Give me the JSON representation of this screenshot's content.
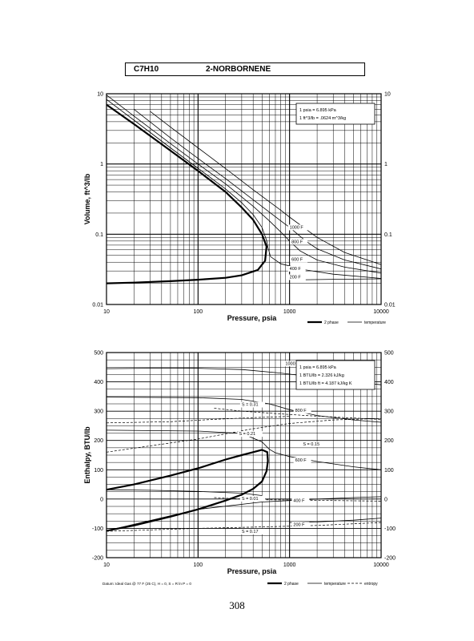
{
  "header": {
    "formula": "C7H10",
    "name": "2-NORBORNENE"
  },
  "page_number": "308",
  "chart_data": [
    {
      "type": "line",
      "x_scale": "log",
      "y_scale": "log",
      "xlim": [
        10,
        10000
      ],
      "ylim": [
        0.01,
        10
      ],
      "xlabel": "Pressure,  psia",
      "ylabel": "Volume, ft^3/lb",
      "x_ticks": [
        "10",
        "100",
        "1000",
        "10000"
      ],
      "y_ticks_left": [
        "10",
        "1",
        "0.1",
        "0.01"
      ],
      "y_ticks_right": [
        "10",
        "1",
        "0.1",
        "0.01"
      ],
      "grid": true,
      "conversions": [
        "1 psia  =  6.895 kPa",
        "1 ft^3/lb  =  .0624 m^3/kg"
      ],
      "legend": {
        "position": "bottom-right",
        "items": [
          "2 phase",
          "temperature"
        ]
      },
      "series": [
        {
          "style": "2 phase",
          "points": [
            [
              10,
              7.0
            ],
            [
              20,
              3.7
            ],
            [
              50,
              1.55
            ],
            [
              100,
              0.8
            ],
            [
              200,
              0.4
            ],
            [
              300,
              0.24
            ],
            [
              400,
              0.16
            ],
            [
              500,
              0.1
            ],
            [
              560,
              0.067
            ],
            [
              540,
              0.042
            ],
            [
              450,
              0.031
            ],
            [
              300,
              0.026
            ],
            [
              200,
              0.024
            ],
            [
              100,
              0.0225
            ],
            [
              50,
              0.0215
            ],
            [
              20,
              0.0205
            ],
            [
              10,
              0.02
            ]
          ]
        },
        {
          "style": "temperature",
          "points": [
            [
              10,
              8.3
            ],
            [
              20,
              4.2
            ],
            [
              50,
              1.7
            ],
            [
              100,
              0.87
            ],
            [
              200,
              0.44
            ],
            [
              300,
              0.28
            ],
            [
              400,
              0.19
            ],
            [
              500,
              0.125
            ],
            [
              560,
              0.082
            ],
            [
              580,
              0.065
            ],
            [
              620,
              0.048
            ],
            [
              800,
              0.038
            ],
            [
              1500,
              0.031
            ],
            [
              3000,
              0.027
            ],
            [
              10000,
              0.0235
            ]
          ]
        },
        {
          "style": "temperature",
          "points": [
            [
              10,
              9.6
            ],
            [
              20,
              4.8
            ],
            [
              50,
              1.95
            ],
            [
              100,
              1.0
            ],
            [
              200,
              0.52
            ],
            [
              400,
              0.25
            ],
            [
              600,
              0.155
            ],
            [
              800,
              0.108
            ],
            [
              1000,
              0.08
            ],
            [
              1300,
              0.058
            ],
            [
              2000,
              0.043
            ],
            [
              4000,
              0.034
            ],
            [
              10000,
              0.028
            ]
          ]
        },
        {
          "style": "temperature",
          "points": [
            [
              20,
              6.0
            ],
            [
              50,
              2.35
            ],
            [
              100,
              1.2
            ],
            [
              200,
              0.62
            ],
            [
              400,
              0.31
            ],
            [
              800,
              0.155
            ],
            [
              1000,
              0.125
            ],
            [
              1500,
              0.08
            ],
            [
              2000,
              0.062
            ],
            [
              4000,
              0.043
            ],
            [
              10000,
              0.032
            ]
          ]
        },
        {
          "style": "temperature",
          "points": [
            [
              30,
              5.6
            ],
            [
              50,
              3.35
            ],
            [
              100,
              1.7
            ],
            [
              200,
              0.86
            ],
            [
              400,
              0.43
            ],
            [
              800,
              0.22
            ],
            [
              1000,
              0.175
            ],
            [
              2000,
              0.09
            ],
            [
              4000,
              0.055
            ],
            [
              10000,
              0.037
            ]
          ]
        },
        {
          "style": "temperature",
          "points": [
            [
              1500,
              0.0225
            ],
            [
              3000,
              0.0228
            ],
            [
              10000,
              0.0232
            ]
          ]
        }
      ],
      "isotherm_labels": [
        {
          "text": "1000 F",
          "x": 1000,
          "y": 0.12
        },
        {
          "text": "800 F",
          "x": 1050,
          "y": 0.075
        },
        {
          "text": "600 F",
          "x": 1050,
          "y": 0.042
        },
        {
          "text": "400 F",
          "x": 1000,
          "y": 0.031
        },
        {
          "text": "200 F",
          "x": 1000,
          "y": 0.0235
        }
      ]
    },
    {
      "type": "line",
      "x_scale": "log",
      "y_scale": "linear",
      "xlim": [
        10,
        10000
      ],
      "ylim": [
        -200,
        500
      ],
      "xlabel": "Pressure,  psia",
      "ylabel": "Enthalpy, BTU/lb",
      "x_ticks": [
        "10",
        "100",
        "1000",
        "10000"
      ],
      "y_ticks_left": [
        "500",
        "400",
        "300",
        "200",
        "100",
        "0",
        "-100",
        "-200"
      ],
      "y_ticks_right": [
        "500",
        "400",
        "300",
        "200",
        "100",
        "0",
        "-100",
        "-200"
      ],
      "grid": true,
      "conversions": [
        "1 psia  =  6.895 kPa",
        "1 BTU/lb  =  2.326 kJ/kg",
        "1 BTU/lb ft  =  4.187 kJ/kg K"
      ],
      "footnote": "Datum: Ideal Gas @ 77 F (25 C),  H = 0,  S = R ln P = 0",
      "legend": {
        "position": "bottom-right",
        "items": [
          "2 phase",
          "temperature",
          "entropy"
        ]
      },
      "series": [
        {
          "style": "2 phase",
          "points": [
            [
              10,
              -108
            ],
            [
              20,
              -90
            ],
            [
              50,
              -60
            ],
            [
              100,
              -35
            ],
            [
              200,
              -5
            ],
            [
              300,
              15
            ],
            [
              400,
              35
            ],
            [
              500,
              60
            ],
            [
              560,
              95
            ],
            [
              580,
              130
            ],
            [
              570,
              160
            ],
            [
              500,
              168
            ],
            [
              400,
              160
            ],
            [
              300,
              150
            ],
            [
              200,
              135
            ],
            [
              100,
              105
            ],
            [
              50,
              80
            ],
            [
              20,
              50
            ],
            [
              10,
              32
            ]
          ]
        },
        {
          "style": "temperature",
          "points": [
            [
              10,
              445
            ],
            [
              50,
              447
            ],
            [
              100,
              446
            ],
            [
              300,
              442
            ],
            [
              800,
              430
            ],
            [
              2000,
              415
            ],
            [
              5000,
              400
            ],
            [
              10000,
              390
            ]
          ]
        },
        {
          "style": "temperature",
          "points": [
            [
              10,
              348
            ],
            [
              100,
              346
            ],
            [
              300,
              340
            ],
            [
              600,
              325
            ],
            [
              1000,
              305
            ],
            [
              2000,
              285
            ],
            [
              5000,
              270
            ],
            [
              10000,
              262
            ]
          ]
        },
        {
          "style": "temperature",
          "points": [
            [
              10,
              235
            ],
            [
              100,
              232
            ],
            [
              300,
              224
            ],
            [
              500,
              195
            ],
            [
              600,
              170
            ],
            [
              700,
              158
            ],
            [
              1000,
              145
            ],
            [
              2000,
              128
            ],
            [
              5000,
              110
            ],
            [
              10000,
              100
            ]
          ]
        },
        {
          "style": "temperature",
          "points": [
            [
              10,
              -108
            ],
            [
              100,
              -35
            ],
            [
              500,
              -10
            ],
            [
              1000,
              -5
            ],
            [
              2000,
              0
            ],
            [
              5000,
              5
            ],
            [
              10000,
              8
            ]
          ]
        },
        {
          "style": "temperature",
          "points": [
            [
              1000,
              -80
            ],
            [
              2000,
              -78
            ],
            [
              5000,
              -72
            ],
            [
              10000,
              -65
            ]
          ]
        },
        {
          "style": "temperature",
          "points": [
            [
              10,
              32
            ],
            [
              30,
              30
            ],
            [
              100,
              26
            ],
            [
              300,
              20
            ],
            [
              500,
              12
            ]
          ]
        },
        {
          "style": "entropy",
          "points": [
            [
              150,
              310
            ],
            [
              300,
              300
            ],
            [
              700,
              292
            ],
            [
              1500,
              285
            ],
            [
              4000,
              278
            ],
            [
              10000,
              272
            ]
          ]
        },
        {
          "style": "entropy",
          "points": [
            [
              10,
              260
            ],
            [
              50,
              264
            ],
            [
              150,
              272
            ],
            [
              400,
              278
            ],
            [
              1000,
              282
            ]
          ]
        },
        {
          "style": "entropy",
          "points": [
            [
              10,
              160
            ],
            [
              100,
              205
            ],
            [
              400,
              240
            ],
            [
              1000,
              258
            ],
            [
              3000,
              270
            ],
            [
              10000,
              275
            ]
          ]
        },
        {
          "style": "entropy",
          "points": [
            [
              150,
              5
            ],
            [
              400,
              -2
            ],
            [
              1000,
              -3
            ],
            [
              3000,
              -5
            ],
            [
              10000,
              -7
            ]
          ]
        },
        {
          "style": "entropy",
          "points": [
            [
              10,
              -110
            ],
            [
              100,
              -100
            ],
            [
              500,
              -95
            ],
            [
              2000,
              -90
            ],
            [
              10000,
              -80
            ]
          ]
        }
      ],
      "isotherm_labels": [
        {
          "text": "1000 F",
          "x": 900,
          "y": 458
        },
        {
          "text": "800 F",
          "x": 1150,
          "y": 298
        },
        {
          "text": "600 F",
          "x": 1150,
          "y": 128
        },
        {
          "text": "400 F",
          "x": 1100,
          "y": -10
        },
        {
          "text": "200 F",
          "x": 1100,
          "y": -92
        }
      ],
      "entropy_labels": [
        {
          "text": "S = 0.31",
          "x": 300,
          "y": 318
        },
        {
          "text": "S = 0.21",
          "x": 280,
          "y": 218
        },
        {
          "text": "S = 0.15",
          "x": 1400,
          "y": 183
        },
        {
          "text": "S = 0.01",
          "x": 300,
          "y": -3
        },
        {
          "text": "S = 0.17",
          "x": 300,
          "y": -115
        }
      ]
    }
  ]
}
